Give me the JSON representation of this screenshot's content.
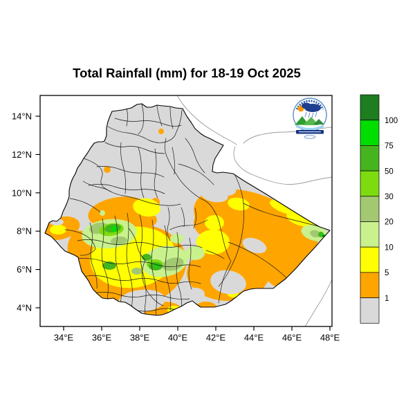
{
  "title": "Total Rainfall (mm) for 18-19 Oct 2025",
  "map": {
    "x_axis": {
      "labels": [
        "34°E",
        "36°E",
        "38°E",
        "40°E",
        "42°E",
        "44°E",
        "46°E",
        "48°E"
      ],
      "values": [
        34,
        36,
        38,
        40,
        42,
        44,
        46,
        48
      ]
    },
    "y_axis": {
      "labels": [
        "14°N",
        "12°N",
        "10°N",
        "8°N",
        "6°N",
        "4°N"
      ],
      "values": [
        14,
        12,
        10,
        8,
        6,
        4
      ]
    }
  },
  "legend": {
    "boundary_labels": [
      "100",
      "75",
      "50",
      "30",
      "20",
      "10",
      "5",
      "1"
    ],
    "cells_top_to_bottom": [
      "dark_green",
      "bright_green",
      "medium_green",
      "yellow_green",
      "sage_green",
      "pale_green",
      "yellow",
      "orange",
      "gray"
    ],
    "cmap": {
      "dark_green": "#1e7d1e",
      "bright_green": "#00de00",
      "medium_green": "#46b41e",
      "yellow_green": "#7ddc0f",
      "sage_green": "#a3c872",
      "pale_green": "#c9f18e",
      "yellow": "#ffff00",
      "orange": "#ffa500",
      "gray": "#d9d9d9"
    }
  },
  "logo": {
    "label": "Ethiopian Meteorology Institute emblem"
  }
}
